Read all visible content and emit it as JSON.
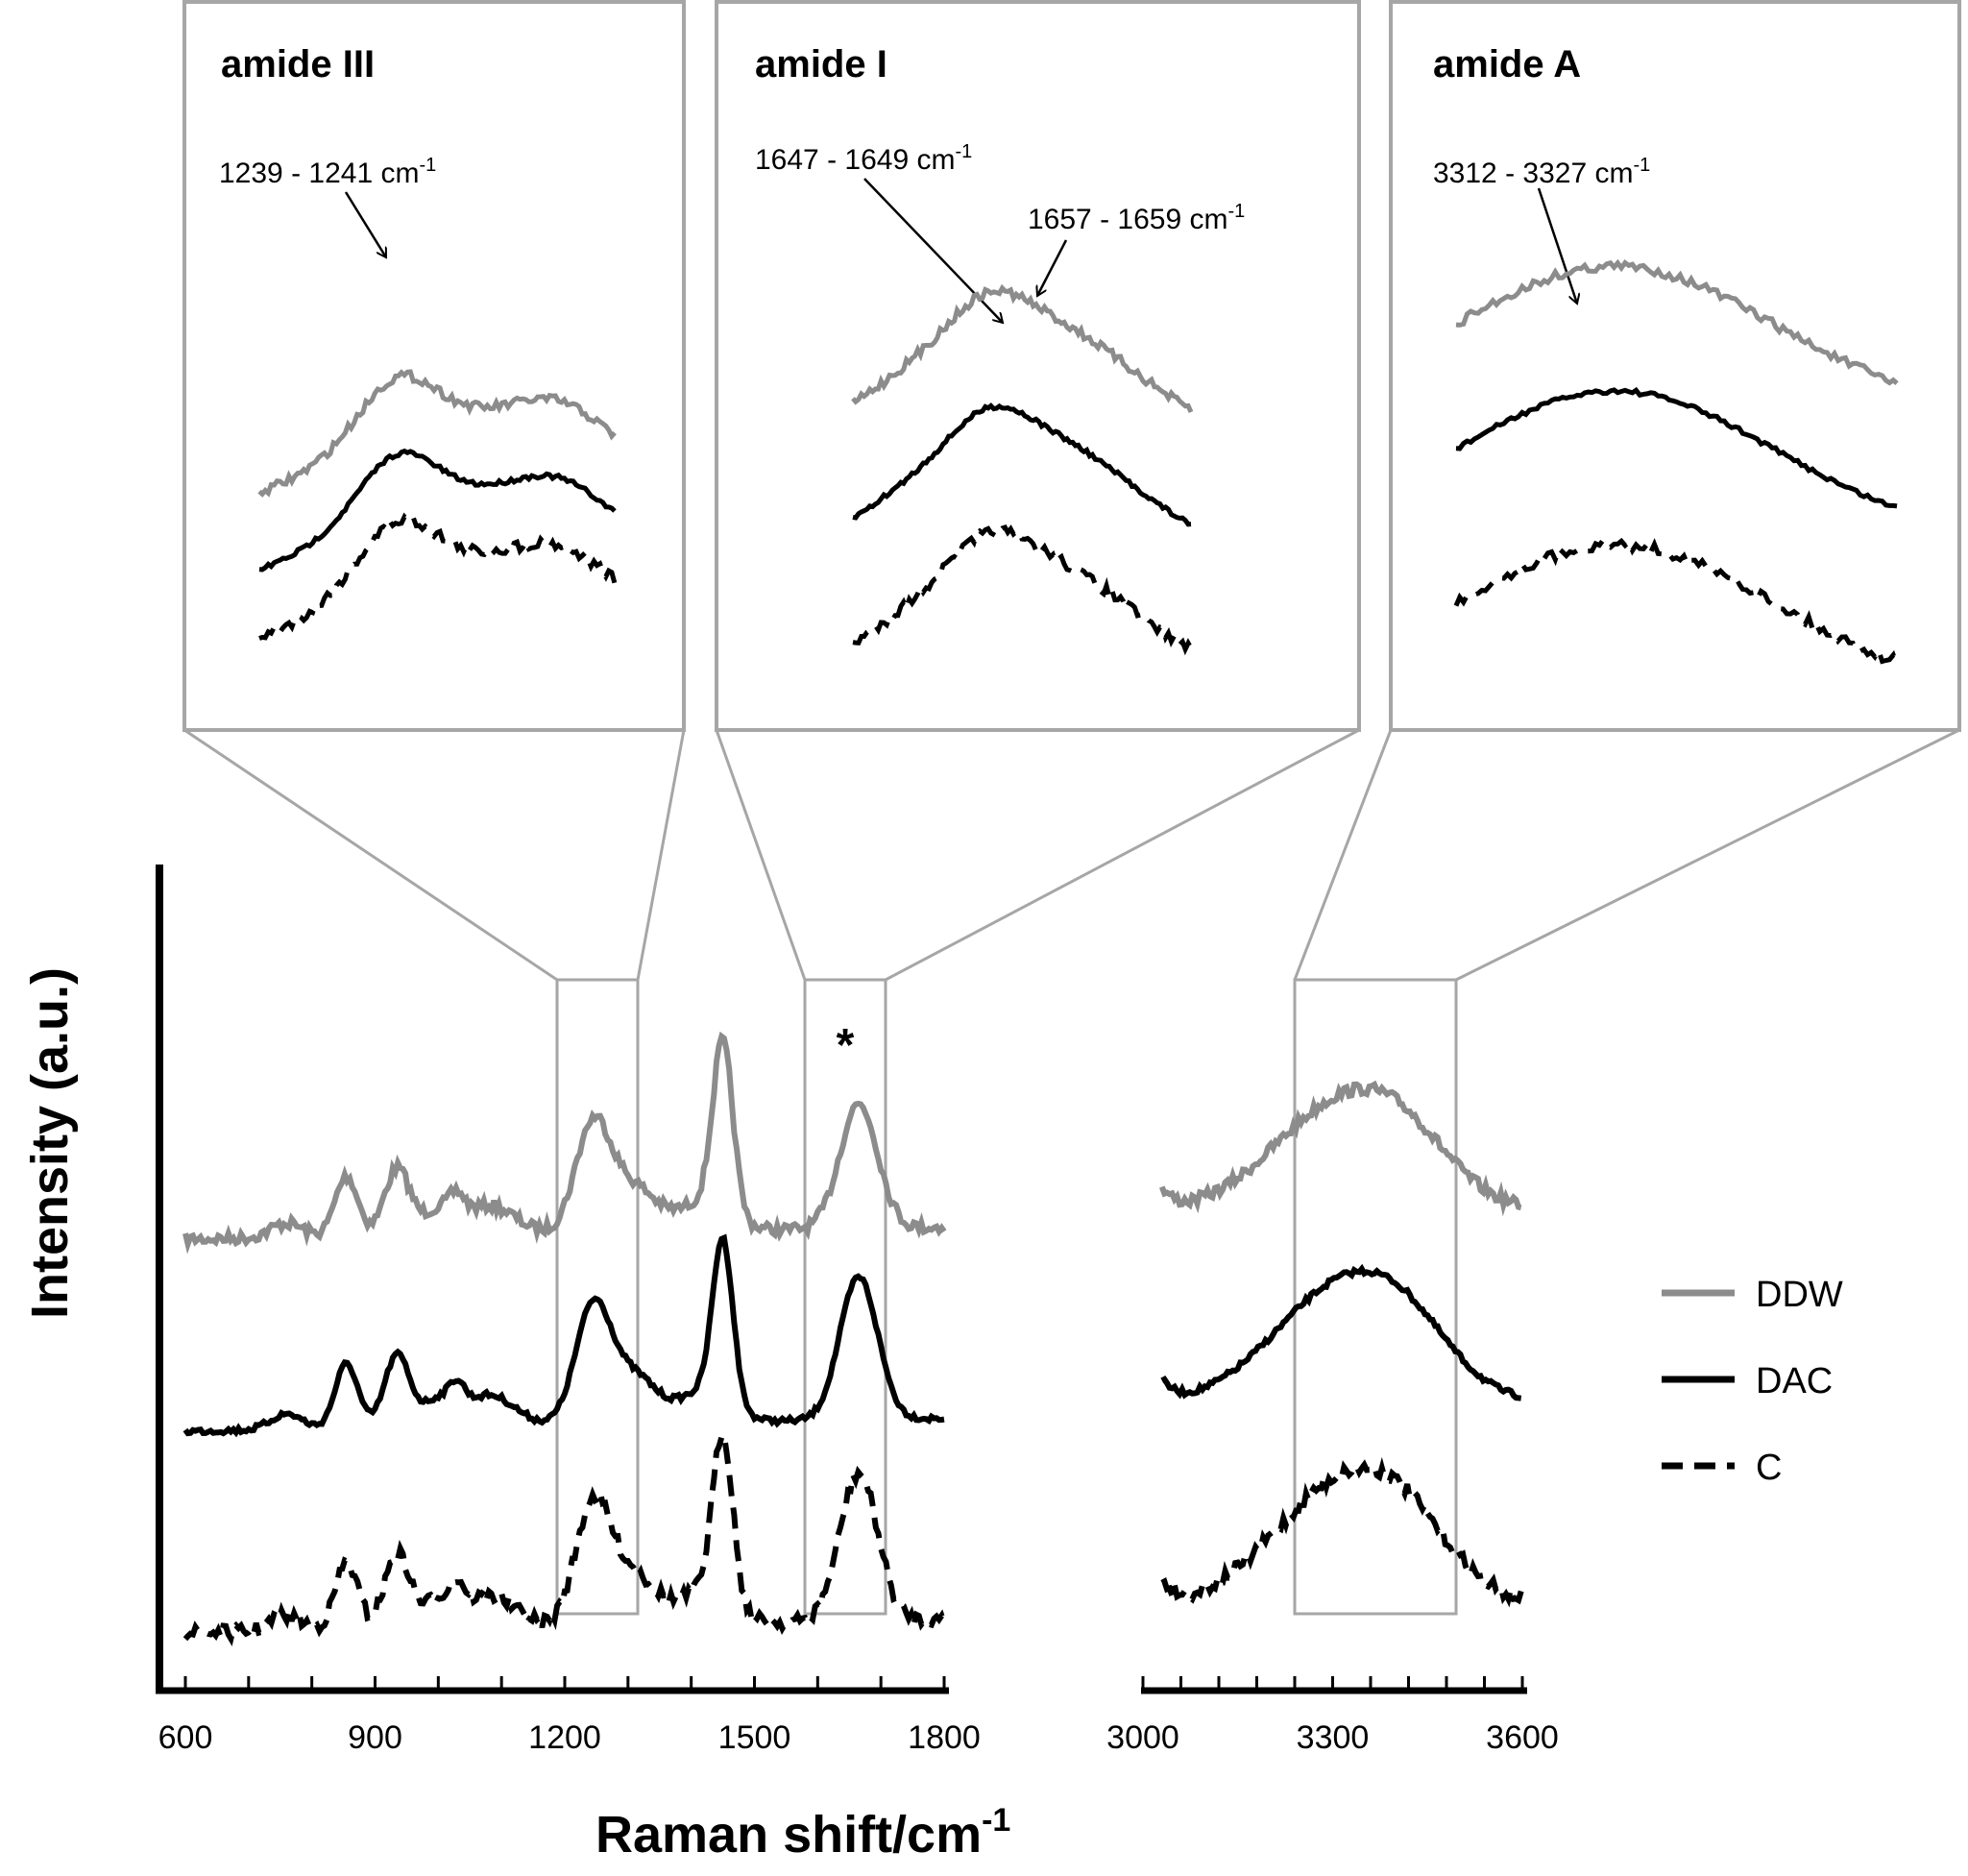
{
  "chart_data": {
    "type": "line",
    "xlabel": "Raman shift/cm-1",
    "xlabel_base": "Raman shift/cm",
    "xlabel_sup": "-1",
    "ylabel": "Intensity (a.u.)",
    "x_ranges": [
      [
        600,
        1800
      ],
      [
        3000,
        3600
      ]
    ],
    "x_ticks_left": [
      "600",
      "900",
      "1200",
      "1500",
      "1800"
    ],
    "x_ticks_right": [
      "3000",
      "3300",
      "3600"
    ],
    "series": [
      {
        "name": "DDW",
        "color": "#8c8c8c",
        "style": "solid"
      },
      {
        "name": "DAC",
        "color": "#000000",
        "style": "solid"
      },
      {
        "name": "C",
        "color": "#000000",
        "style": "dashed"
      }
    ],
    "peak_marker": "*",
    "regions": [
      {
        "band": "amide III",
        "range": [
          1190,
          1320
        ],
        "peaks": [
          {
            "text_base": "1239  - 1241 cm",
            "sup": "-1",
            "peak_x": 1240
          }
        ]
      },
      {
        "band": "amide I",
        "range": [
          1600,
          1720
        ],
        "peaks": [
          {
            "text_base": "1647 - 1649 cm",
            "sup": "-1",
            "peak_x": 1648
          },
          {
            "text_base": "1657 - 1659 cm",
            "sup": "-1",
            "peak_x": 1658
          }
        ]
      },
      {
        "band": "amide A",
        "range": [
          3230,
          3480
        ],
        "peaks": [
          {
            "text_base": "3312 - 3327 cm",
            "sup": "-1",
            "peak_x": 3320
          }
        ]
      }
    ]
  },
  "legend": {
    "items": [
      {
        "label": "DDW"
      },
      {
        "label": "DAC"
      },
      {
        "label": "C"
      }
    ]
  }
}
